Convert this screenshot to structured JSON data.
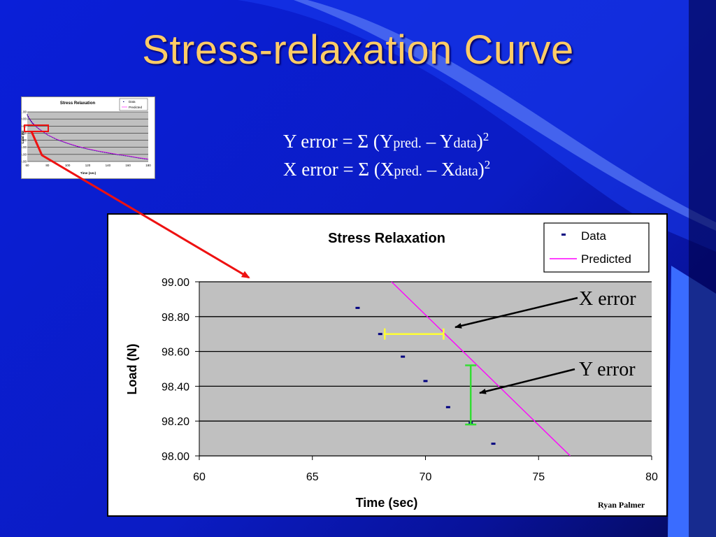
{
  "slide": {
    "title": "Stress-relaxation Curve",
    "formula_y": {
      "lead": "Y error = Σ (Y",
      "pred": "pred.",
      "mid": " – Y",
      "data": "data",
      "close": ")",
      "exp": "2"
    },
    "formula_x": {
      "lead": "X error = Σ (X",
      "pred": "pred.",
      "mid": " – X",
      "data": "data",
      "close": ")",
      "exp": "2"
    },
    "annotations": {
      "x_error": "X error",
      "y_error": "Y error"
    },
    "author": "Ryan Palmer",
    "colors": {
      "title": "#ffcc66",
      "x_error_bar": "#ffff33",
      "y_error_bar": "#33dd33",
      "highlight": "#ee1111",
      "predicted": "#ff00ff",
      "data": "#000080"
    }
  },
  "chart_data": [
    {
      "type": "line",
      "title": "Stress Relaxation",
      "xlabel": "Time (sec)",
      "ylabel": "Load (N)",
      "xlim": [
        60,
        80
      ],
      "ylim": [
        98.0,
        99.0
      ],
      "x_ticks": [
        60,
        65,
        70,
        75,
        80
      ],
      "y_ticks": [
        "98.00",
        "98.20",
        "98.40",
        "98.60",
        "98.80",
        "99.00"
      ],
      "grid": true,
      "legend": "top-right",
      "series": [
        {
          "name": "Data",
          "kind": "scatter",
          "x": [
            67,
            68,
            69,
            70,
            71,
            72,
            73
          ],
          "y": [
            98.85,
            98.7,
            98.57,
            98.43,
            98.28,
            98.19,
            98.07
          ]
        },
        {
          "name": "Predicted",
          "kind": "line",
          "x": [
            68.5,
            76.4
          ],
          "y": [
            99.0,
            98.0
          ]
        }
      ]
    },
    {
      "type": "line",
      "title": "Stress Relaxation",
      "xlabel": "Time (sec)",
      "ylabel": "Load (N)",
      "xlim": [
        60,
        180
      ],
      "ylim": [
        94,
        101
      ],
      "x_ticks": [
        "60",
        "80",
        "100",
        "120",
        "140",
        "160",
        "180"
      ],
      "y_ticks": [
        "94.00",
        "95.00",
        "96.00",
        "97.00",
        "98.00",
        "99.00",
        "100.00",
        "101.00"
      ],
      "legend": "top-right",
      "series": [
        {
          "name": "Data",
          "kind": "scatter",
          "x": [
            60,
            61,
            62,
            63,
            64,
            65,
            66
          ],
          "y": [
            100.6,
            100.3,
            100.0,
            99.8,
            99.6,
            99.4,
            99.2
          ]
        },
        {
          "name": "Predicted",
          "kind": "line",
          "x": [
            60,
            62,
            65,
            70,
            80,
            90,
            100,
            110,
            120,
            130,
            140,
            150,
            160,
            170,
            180
          ],
          "y": [
            100.6,
            100.1,
            99.5,
            98.8,
            97.8,
            97.1,
            96.6,
            96.15,
            95.8,
            95.5,
            95.25,
            95.0,
            94.8,
            94.55,
            94.35
          ]
        }
      ]
    }
  ]
}
